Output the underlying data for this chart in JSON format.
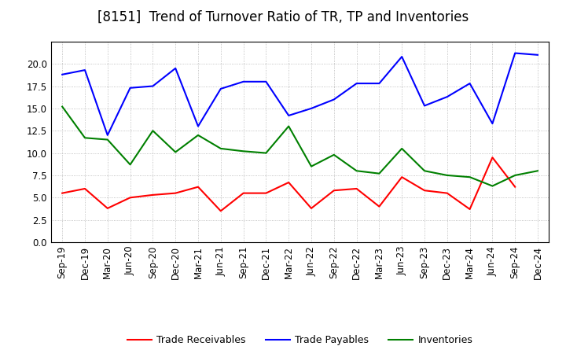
{
  "title": "[8151]  Trend of Turnover Ratio of TR, TP and Inventories",
  "ylim": [
    0.0,
    22.5
  ],
  "yticks": [
    0.0,
    2.5,
    5.0,
    7.5,
    10.0,
    12.5,
    15.0,
    17.5,
    20.0
  ],
  "x_labels": [
    "Sep-19",
    "Dec-19",
    "Mar-20",
    "Jun-20",
    "Sep-20",
    "Dec-20",
    "Mar-21",
    "Jun-21",
    "Sep-21",
    "Dec-21",
    "Mar-22",
    "Jun-22",
    "Sep-22",
    "Dec-22",
    "Mar-23",
    "Jun-23",
    "Sep-23",
    "Dec-23",
    "Mar-24",
    "Jun-24",
    "Sep-24",
    "Dec-24"
  ],
  "trade_receivables": [
    5.5,
    6.0,
    3.8,
    5.0,
    5.3,
    5.5,
    6.2,
    3.5,
    5.5,
    5.5,
    6.7,
    3.8,
    5.8,
    6.0,
    4.0,
    7.3,
    5.8,
    5.5,
    3.7,
    9.5,
    6.2,
    null
  ],
  "trade_payables": [
    18.8,
    19.3,
    12.0,
    17.3,
    17.5,
    19.5,
    13.0,
    17.2,
    18.0,
    18.0,
    14.2,
    15.0,
    16.0,
    17.8,
    17.8,
    20.8,
    15.3,
    16.3,
    17.8,
    13.3,
    21.2,
    21.0
  ],
  "inventories": [
    15.2,
    11.7,
    11.5,
    8.7,
    12.5,
    10.1,
    12.0,
    10.5,
    10.2,
    10.0,
    13.0,
    8.5,
    9.8,
    8.0,
    7.7,
    10.5,
    8.0,
    7.5,
    7.3,
    6.3,
    7.5,
    8.0
  ],
  "tr_color": "#ff0000",
  "tp_color": "#0000ff",
  "inv_color": "#008000",
  "bg_color": "#ffffff",
  "grid_color": "#aaaaaa",
  "title_fontsize": 12,
  "legend_fontsize": 9,
  "tick_fontsize": 8.5
}
